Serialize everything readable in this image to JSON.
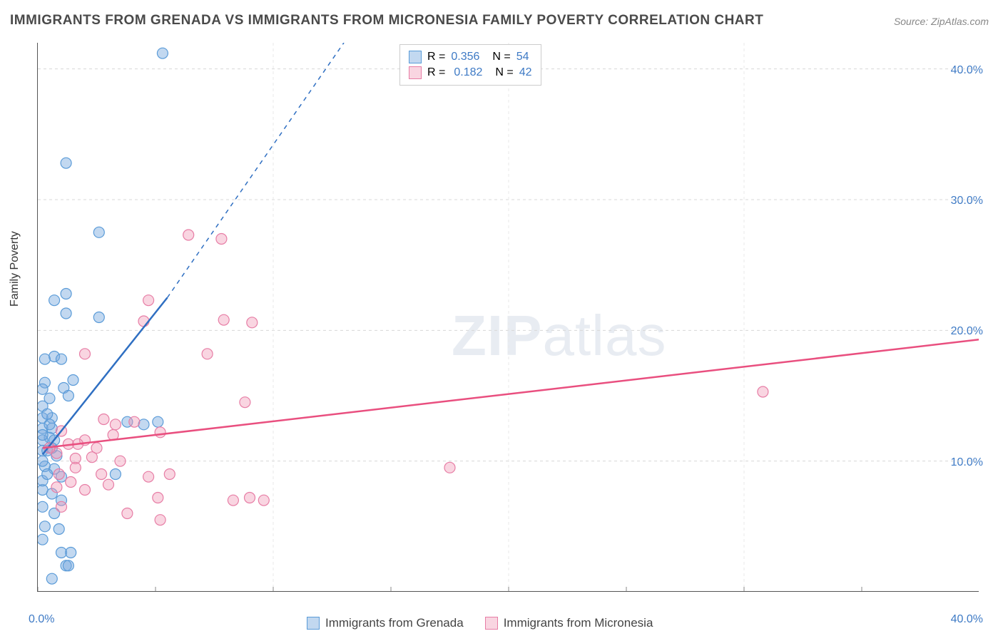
{
  "title": "IMMIGRANTS FROM GRENADA VS IMMIGRANTS FROM MICRONESIA FAMILY POVERTY CORRELATION CHART",
  "source": "Source: ZipAtlas.com",
  "y_axis_label": "Family Poverty",
  "watermark_bold": "ZIP",
  "watermark_rest": "atlas",
  "chart": {
    "type": "scatter",
    "xlim": [
      0,
      40
    ],
    "ylim": [
      0,
      42
    ],
    "x_ticks": [
      0,
      10,
      20,
      30,
      40
    ],
    "x_tick_labels": [
      "0.0%",
      "",
      "",
      "",
      "40.0%"
    ],
    "y_ticks": [
      10,
      20,
      30,
      40
    ],
    "y_tick_labels": [
      "10.0%",
      "20.0%",
      "30.0%",
      "40.0%"
    ],
    "grid_color": "#d8d8d8",
    "background_color": "#ffffff",
    "series": [
      {
        "name": "Immigrants from Grenada",
        "r_value": "0.356",
        "n_value": "54",
        "color_fill": "rgba(120,168,222,0.45)",
        "color_stroke": "#5a9bd8",
        "trend_color": "#2f6fc2",
        "trend_solid": {
          "x1": 0.2,
          "y1": 10.5,
          "x2": 5.5,
          "y2": 22.5
        },
        "trend_dashed": {
          "x1": 5.5,
          "y1": 22.5,
          "x2": 13,
          "y2": 42
        },
        "points": [
          [
            5.3,
            41.2
          ],
          [
            1.2,
            32.8
          ],
          [
            2.6,
            27.5
          ],
          [
            1.2,
            22.8
          ],
          [
            0.7,
            22.3
          ],
          [
            1.2,
            21.3
          ],
          [
            2.6,
            21.0
          ],
          [
            0.7,
            18.0
          ],
          [
            0.3,
            17.8
          ],
          [
            1.0,
            17.8
          ],
          [
            0.3,
            16.0
          ],
          [
            1.1,
            15.6
          ],
          [
            0.5,
            14.8
          ],
          [
            1.3,
            15.0
          ],
          [
            0.6,
            13.3
          ],
          [
            0.2,
            12.5
          ],
          [
            0.6,
            12.5
          ],
          [
            3.8,
            13.0
          ],
          [
            4.5,
            12.8
          ],
          [
            5.1,
            13.0
          ],
          [
            0.5,
            11.8
          ],
          [
            0.2,
            11.6
          ],
          [
            0.7,
            11.6
          ],
          [
            0.2,
            10.8
          ],
          [
            0.4,
            10.8
          ],
          [
            0.8,
            10.4
          ],
          [
            0.3,
            9.6
          ],
          [
            0.7,
            9.4
          ],
          [
            1.0,
            8.8
          ],
          [
            3.3,
            9.0
          ],
          [
            0.2,
            7.8
          ],
          [
            0.6,
            7.5
          ],
          [
            1.0,
            7.0
          ],
          [
            0.2,
            6.5
          ],
          [
            0.7,
            6.0
          ],
          [
            0.9,
            4.8
          ],
          [
            1.0,
            3.0
          ],
          [
            1.4,
            3.0
          ],
          [
            1.2,
            2.0
          ],
          [
            1.3,
            2.0
          ],
          [
            0.2,
            15.5
          ],
          [
            0.2,
            14.2
          ],
          [
            0.2,
            13.3
          ],
          [
            0.4,
            13.6
          ],
          [
            0.2,
            12.0
          ],
          [
            0.2,
            8.5
          ],
          [
            0.3,
            5.0
          ],
          [
            0.2,
            4.0
          ],
          [
            0.6,
            1.0
          ],
          [
            0.4,
            9.0
          ],
          [
            0.2,
            10.0
          ],
          [
            0.5,
            12.8
          ],
          [
            0.6,
            11.0
          ],
          [
            1.5,
            16.2
          ]
        ]
      },
      {
        "name": "Immigrants from Micronesia",
        "r_value": "0.182",
        "n_value": "42",
        "color_fill": "rgba(240,150,180,0.40)",
        "color_stroke": "#e77da5",
        "trend_color": "#e94f7f",
        "trend_solid": {
          "x1": 0.2,
          "y1": 11.0,
          "x2": 40,
          "y2": 19.3
        },
        "trend_dashed": null,
        "points": [
          [
            6.4,
            27.3
          ],
          [
            7.8,
            27.0
          ],
          [
            4.7,
            22.3
          ],
          [
            4.5,
            20.7
          ],
          [
            7.9,
            20.8
          ],
          [
            9.1,
            20.6
          ],
          [
            7.2,
            18.2
          ],
          [
            2.0,
            18.2
          ],
          [
            8.8,
            14.5
          ],
          [
            30.8,
            15.3
          ],
          [
            2.8,
            13.2
          ],
          [
            3.3,
            12.8
          ],
          [
            4.1,
            13.0
          ],
          [
            3.2,
            12.0
          ],
          [
            5.2,
            12.2
          ],
          [
            2.0,
            11.6
          ],
          [
            1.3,
            11.3
          ],
          [
            2.5,
            11.0
          ],
          [
            0.8,
            10.6
          ],
          [
            1.6,
            10.2
          ],
          [
            2.3,
            10.3
          ],
          [
            3.5,
            10.0
          ],
          [
            17.5,
            9.5
          ],
          [
            1.6,
            9.5
          ],
          [
            2.7,
            9.0
          ],
          [
            4.7,
            8.8
          ],
          [
            5.6,
            9.0
          ],
          [
            3.0,
            8.2
          ],
          [
            0.9,
            9.0
          ],
          [
            5.1,
            7.2
          ],
          [
            8.3,
            7.0
          ],
          [
            9.0,
            7.2
          ],
          [
            9.6,
            7.0
          ],
          [
            3.8,
            6.0
          ],
          [
            5.2,
            5.5
          ],
          [
            0.8,
            8.0
          ],
          [
            1.4,
            8.4
          ],
          [
            1.0,
            6.5
          ],
          [
            2.0,
            7.8
          ],
          [
            1.0,
            12.3
          ],
          [
            0.5,
            11.0
          ],
          [
            1.7,
            11.3
          ]
        ]
      }
    ]
  },
  "legend_top": {
    "r_label": "R =",
    "n_label": "N ="
  },
  "legend_bottom": {
    "items": [
      "Immigrants from Grenada",
      "Immigrants from Micronesia"
    ]
  }
}
